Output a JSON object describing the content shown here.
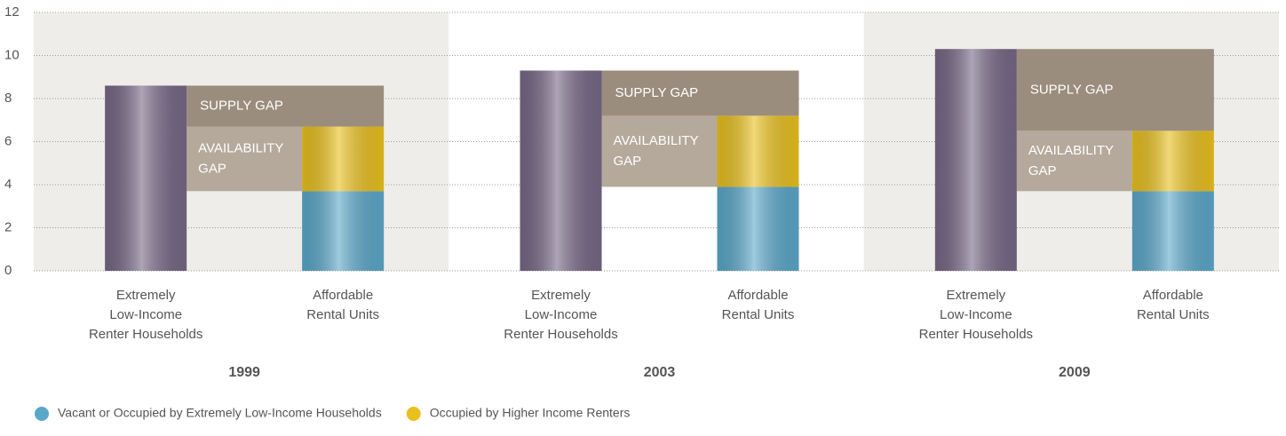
{
  "chart_data": {
    "type": "gap_bar",
    "ylim": [
      0,
      12
    ],
    "yticks": [
      0,
      2,
      4,
      6,
      8,
      10,
      12
    ],
    "grid": true,
    "groups": [
      "1999",
      "2003",
      "2009"
    ],
    "bar_labels": [
      [
        "Extremely",
        "Low-Income",
        "Renter Households"
      ],
      [
        "Affordable",
        "Rental Units"
      ]
    ],
    "households": {
      "color": "#766785",
      "values": [
        8.6,
        9.3,
        10.3
      ]
    },
    "series": [
      {
        "name": "Vacant or Occupied by Extremely Low-Income Households",
        "color": "#5ba7c9",
        "values": [
          3.7,
          3.9,
          3.7
        ]
      },
      {
        "name": "Occupied by Higher Income Renters",
        "color": "#e9c01e",
        "values": [
          3.0,
          3.3,
          2.8
        ]
      }
    ],
    "supply_gap": {
      "label": "SUPPLY GAP",
      "color": "#9b8d7d"
    },
    "availability_gap": {
      "label": [
        "AVAILABILITY",
        "GAP"
      ],
      "color": "#b5a99c"
    },
    "group_backgrounds": [
      "#efede9",
      "#ffffff",
      "#efede9"
    ]
  }
}
